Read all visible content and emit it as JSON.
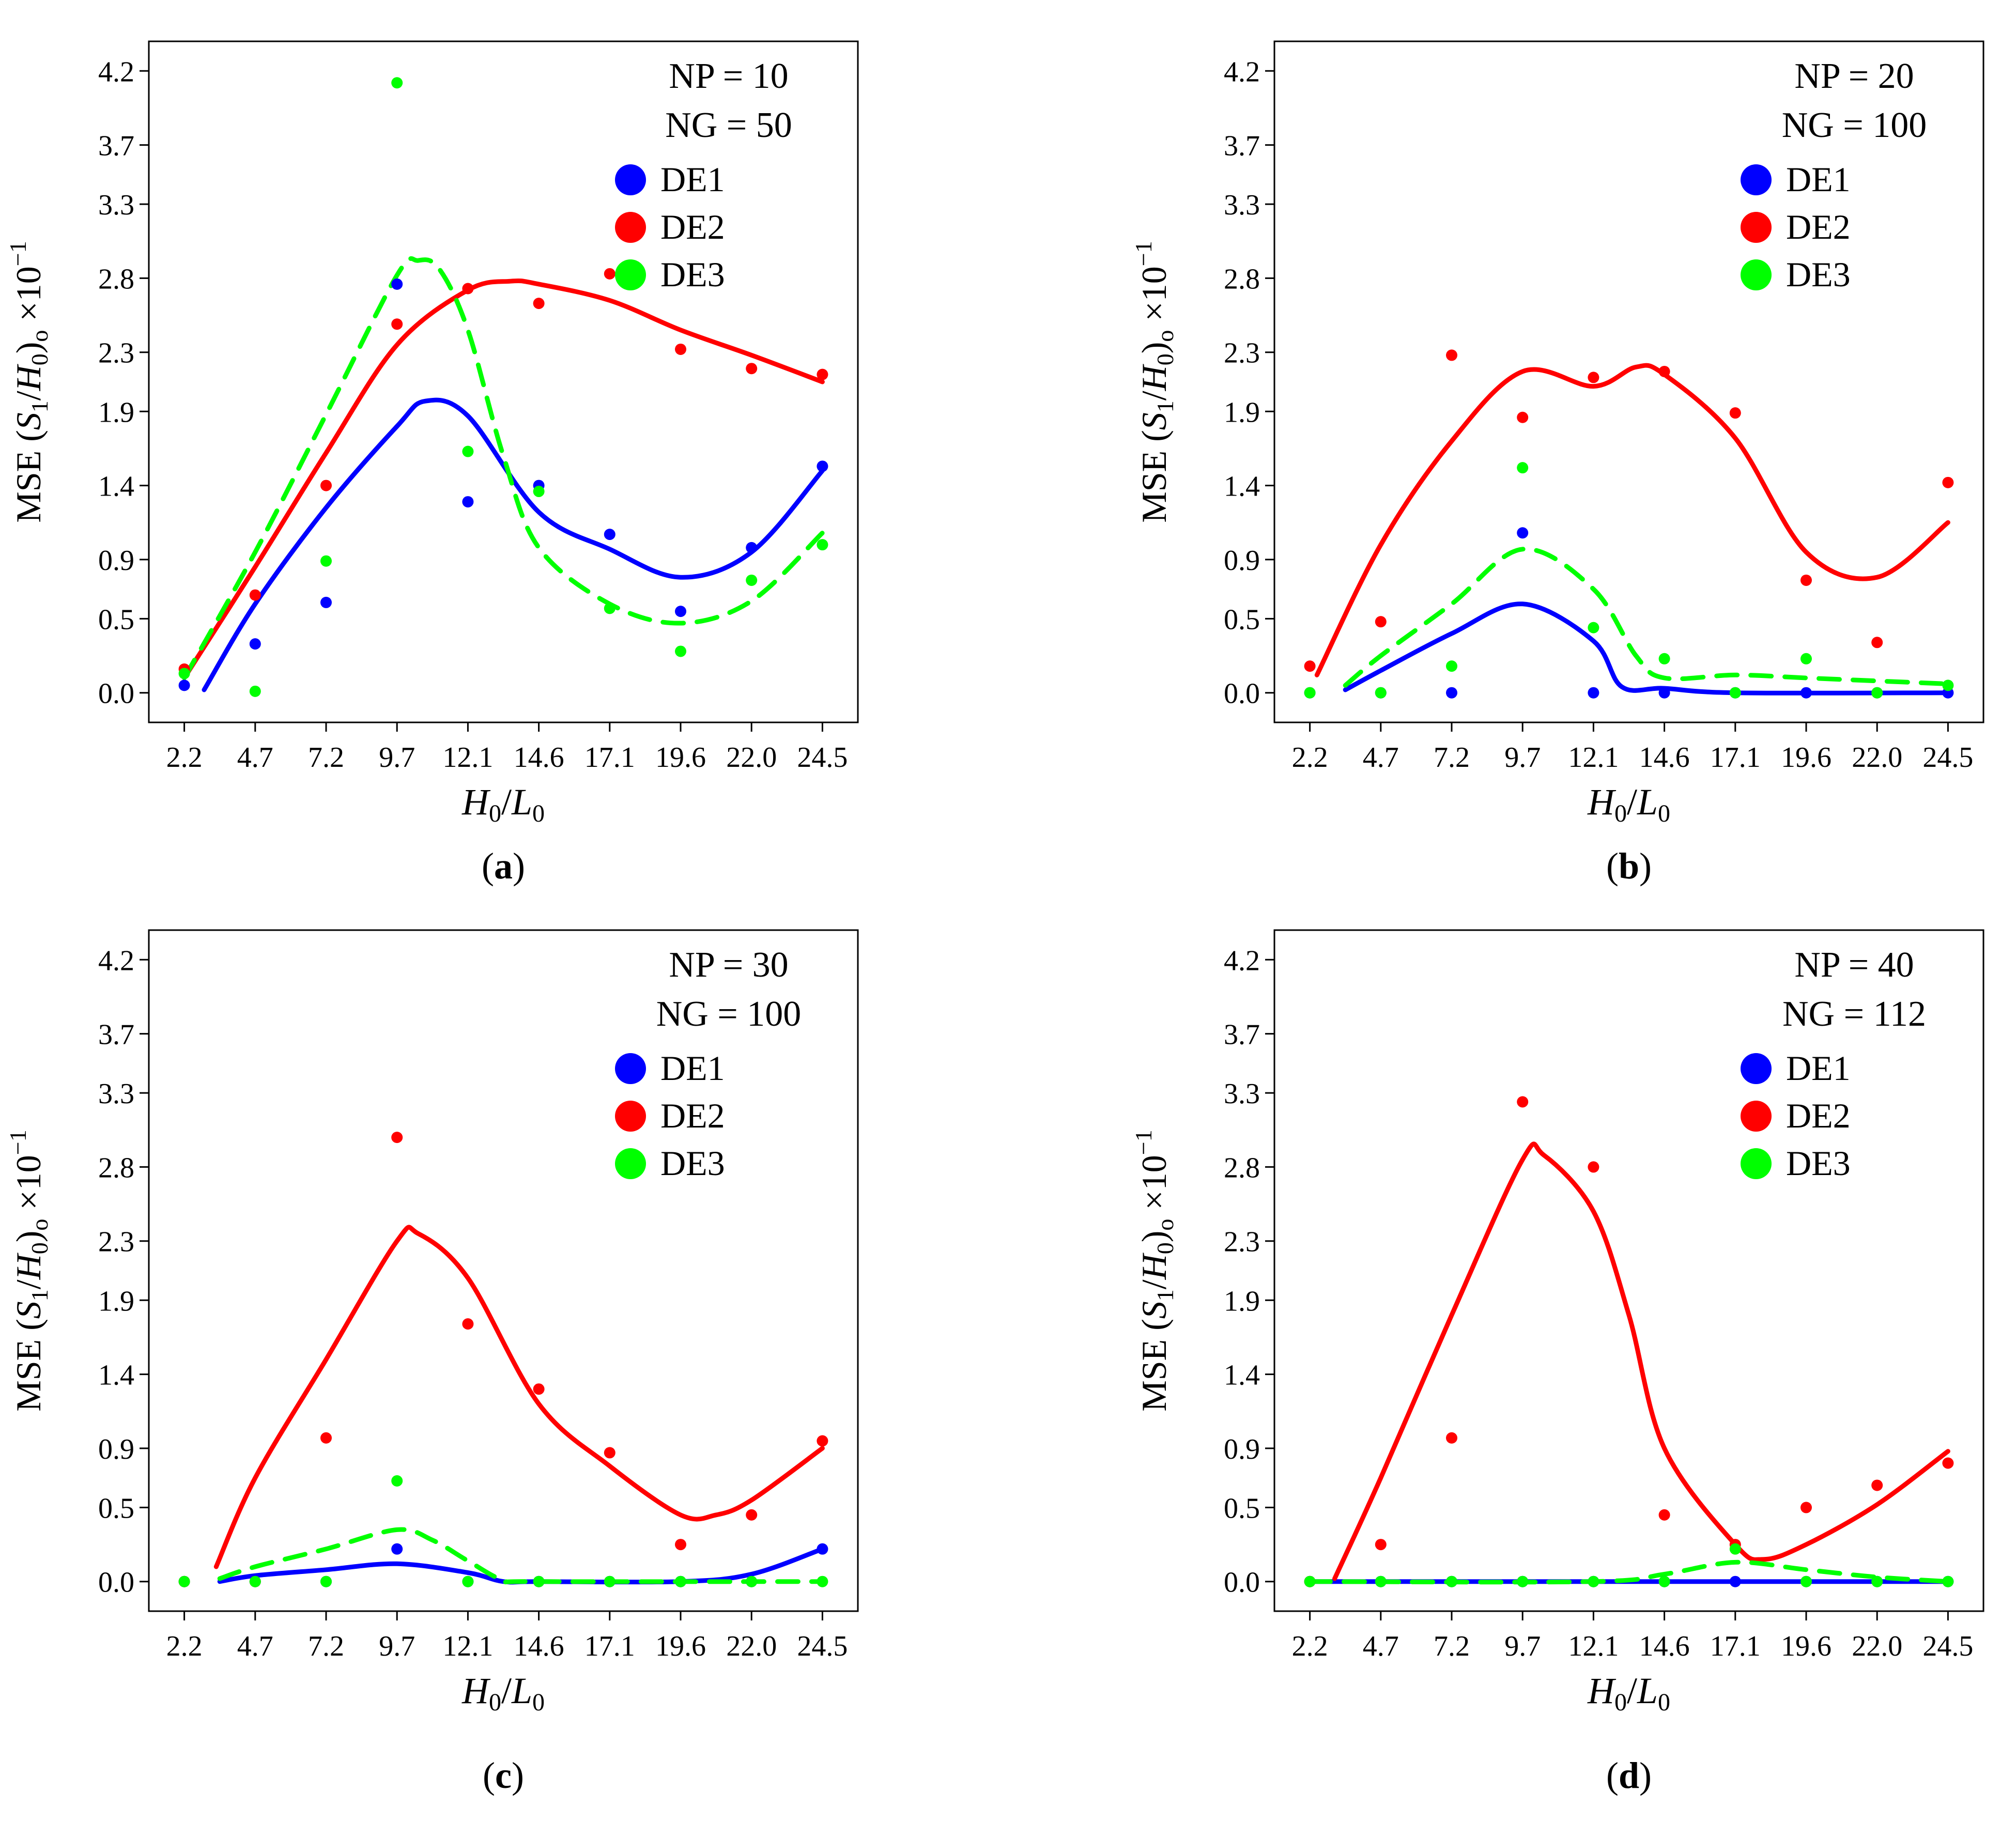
{
  "chart_data": [
    {
      "type": "scatter",
      "caption_letter": "a",
      "annotations": [
        "NP = 10",
        "NG = 50"
      ],
      "xlabel_main": "H",
      "xlabel_sub": "0",
      "xlabel_sep": "/",
      "xlabel_main2": "L",
      "xlabel_sub2": "0",
      "categories": [
        "2.2",
        "4.7",
        "7.2",
        "9.7",
        "12.1",
        "14.6",
        "17.1",
        "19.6",
        "22.0",
        "24.5"
      ],
      "yticks": [
        "0.0",
        "0.5",
        "0.9",
        "1.4",
        "1.9",
        "2.3",
        "2.8",
        "3.3",
        "3.7",
        "4.2"
      ],
      "ylim": [
        -0.2,
        4.4
      ],
      "legend": [
        "DE1",
        "DE2",
        "DE3"
      ],
      "series": [
        {
          "name": "DE1",
          "color": "#0000ff",
          "dash": false,
          "points": [
            0.05,
            0.33,
            0.61,
            2.76,
            1.29,
            1.4,
            1.07,
            0.55,
            0.98,
            1.53
          ],
          "curve": [
            [
              0.28,
              0.02
            ],
            [
              1,
              0.6
            ],
            [
              2,
              1.25
            ],
            [
              3,
              1.8
            ],
            [
              3.4,
              1.97
            ],
            [
              4,
              1.87
            ],
            [
              5,
              1.22
            ],
            [
              6,
              0.97
            ],
            [
              7,
              0.78
            ],
            [
              8,
              0.95
            ],
            [
              9,
              1.5
            ]
          ]
        },
        {
          "name": "DE2",
          "color": "#ff0000",
          "dash": false,
          "points": [
            0.16,
            0.66,
            1.4,
            2.49,
            2.73,
            2.63,
            2.83,
            2.32,
            2.19,
            2.15
          ],
          "curve": [
            [
              0,
              0.1
            ],
            [
              1,
              0.85
            ],
            [
              2,
              1.62
            ],
            [
              3,
              2.35
            ],
            [
              4,
              2.72
            ],
            [
              4.6,
              2.78
            ],
            [
              5,
              2.76
            ],
            [
              6,
              2.65
            ],
            [
              7,
              2.45
            ],
            [
              8,
              2.28
            ],
            [
              9,
              2.1
            ]
          ]
        },
        {
          "name": "DE3",
          "color": "#00ff00",
          "dash": true,
          "points": [
            0.13,
            0.01,
            0.89,
            4.12,
            1.63,
            1.36,
            0.57,
            0.28,
            0.76,
            1.0
          ],
          "curve": [
            [
              0,
              0.1
            ],
            [
              1,
              0.95
            ],
            [
              2,
              1.88
            ],
            [
              3,
              2.82
            ],
            [
              3.3,
              2.92
            ],
            [
              3.6,
              2.86
            ],
            [
              4,
              2.45
            ],
            [
              4.5,
              1.6
            ],
            [
              5,
              0.98
            ],
            [
              6,
              0.6
            ],
            [
              7,
              0.47
            ],
            [
              8,
              0.62
            ],
            [
              9,
              1.08
            ]
          ]
        }
      ]
    },
    {
      "type": "scatter",
      "caption_letter": "b",
      "annotations": [
        "NP = 20",
        "NG = 100"
      ],
      "xlabel_main": "H",
      "xlabel_sub": "0",
      "xlabel_sep": "/",
      "xlabel_main2": "L",
      "xlabel_sub2": "0",
      "categories": [
        "2.2",
        "4.7",
        "7.2",
        "9.7",
        "12.1",
        "14.6",
        "17.1",
        "19.6",
        "22.0",
        "24.5"
      ],
      "yticks": [
        "0.0",
        "0.5",
        "0.9",
        "1.4",
        "1.9",
        "2.3",
        "2.8",
        "3.3",
        "3.7",
        "4.2"
      ],
      "ylim": [
        -0.2,
        4.4
      ],
      "legend": [
        "DE1",
        "DE2",
        "DE3"
      ],
      "series": [
        {
          "name": "DE1",
          "color": "#0000ff",
          "dash": false,
          "points": [
            0.0,
            0.0,
            0.0,
            1.08,
            0.0,
            0.0,
            0.0,
            0.0,
            0.0,
            0.0
          ],
          "curve": [
            [
              0.5,
              0.02
            ],
            [
              1,
              0.15
            ],
            [
              2,
              0.4
            ],
            [
              3,
              0.6
            ],
            [
              4,
              0.35
            ],
            [
              4.4,
              0.04
            ],
            [
              5,
              0.03
            ],
            [
              6,
              0.0
            ],
            [
              9,
              0.0
            ]
          ]
        },
        {
          "name": "DE2",
          "color": "#ff0000",
          "dash": false,
          "points": [
            0.18,
            0.48,
            2.28,
            1.86,
            2.13,
            2.17,
            1.89,
            0.76,
            0.34,
            1.42
          ],
          "curve": [
            [
              0.1,
              0.12
            ],
            [
              1,
              1.0
            ],
            [
              2,
              1.7
            ],
            [
              3,
              2.17
            ],
            [
              4,
              2.07
            ],
            [
              4.6,
              2.2
            ],
            [
              5,
              2.15
            ],
            [
              6,
              1.72
            ],
            [
              7,
              0.95
            ],
            [
              8,
              0.78
            ],
            [
              9,
              1.15
            ]
          ]
        },
        {
          "name": "DE3",
          "color": "#00ff00",
          "dash": true,
          "points": [
            0.0,
            0.0,
            0.18,
            1.52,
            0.44,
            0.23,
            0.0,
            0.23,
            0.0,
            0.05
          ],
          "curve": [
            [
              0.5,
              0.05
            ],
            [
              1,
              0.25
            ],
            [
              2,
              0.6
            ],
            [
              3,
              0.97
            ],
            [
              4,
              0.7
            ],
            [
              4.6,
              0.25
            ],
            [
              5,
              0.1
            ],
            [
              6,
              0.12
            ],
            [
              7,
              0.1
            ],
            [
              8,
              0.08
            ],
            [
              9,
              0.06
            ]
          ]
        }
      ]
    },
    {
      "type": "scatter",
      "caption_letter": "c",
      "annotations": [
        "NP = 30",
        "NG = 100"
      ],
      "xlabel_main": "H",
      "xlabel_sub": "0",
      "xlabel_sep": "/",
      "xlabel_main2": "L",
      "xlabel_sub2": "0",
      "categories": [
        "2.2",
        "4.7",
        "7.2",
        "9.7",
        "12.1",
        "14.6",
        "17.1",
        "19.6",
        "22.0",
        "24.5"
      ],
      "yticks": [
        "0.0",
        "0.5",
        "0.9",
        "1.4",
        "1.9",
        "2.3",
        "2.8",
        "3.3",
        "3.7",
        "4.2"
      ],
      "ylim": [
        -0.2,
        4.4
      ],
      "legend": [
        "DE1",
        "DE2",
        "DE3"
      ],
      "series": [
        {
          "name": "DE1",
          "color": "#0000ff",
          "dash": false,
          "points": [
            0.0,
            0.0,
            0.0,
            0.22,
            0.0,
            0.0,
            0.0,
            0.0,
            0.0,
            0.22
          ],
          "curve": [
            [
              0.5,
              0.0
            ],
            [
              1,
              0.04
            ],
            [
              2,
              0.08
            ],
            [
              3,
              0.12
            ],
            [
              4,
              0.06
            ],
            [
              4.5,
              0.0
            ],
            [
              5,
              0.0
            ],
            [
              7,
              0.0
            ],
            [
              8,
              0.05
            ],
            [
              9,
              0.22
            ]
          ]
        },
        {
          "name": "DE2",
          "color": "#ff0000",
          "dash": false,
          "points": [
            0.0,
            0.0,
            0.97,
            3.0,
            1.74,
            1.3,
            0.87,
            0.25,
            0.45,
            0.95
          ],
          "curve": [
            [
              0.45,
              0.1
            ],
            [
              1,
              0.7
            ],
            [
              2,
              1.5
            ],
            [
              3,
              2.3
            ],
            [
              3.3,
              2.35
            ],
            [
              4,
              2.05
            ],
            [
              5,
              1.2
            ],
            [
              6,
              0.78
            ],
            [
              7,
              0.45
            ],
            [
              7.5,
              0.45
            ],
            [
              8,
              0.55
            ],
            [
              9,
              0.9
            ]
          ]
        },
        {
          "name": "DE3",
          "color": "#00ff00",
          "dash": true,
          "points": [
            0.0,
            0.0,
            0.0,
            0.68,
            0.0,
            0.0,
            0.0,
            0.0,
            0.0,
            0.0
          ],
          "curve": [
            [
              0.5,
              0.02
            ],
            [
              1,
              0.1
            ],
            [
              2,
              0.22
            ],
            [
              3,
              0.35
            ],
            [
              3.5,
              0.28
            ],
            [
              4,
              0.14
            ],
            [
              4.5,
              0.01
            ],
            [
              5,
              0.0
            ],
            [
              9,
              0.0
            ]
          ]
        }
      ]
    },
    {
      "type": "scatter",
      "caption_letter": "d",
      "annotations": [
        "NP = 40",
        "NG = 112"
      ],
      "xlabel_main": "H",
      "xlabel_sub": "0",
      "xlabel_sep": "/",
      "xlabel_main2": "L",
      "xlabel_sub2": "0",
      "categories": [
        "2.2",
        "4.7",
        "7.2",
        "9.7",
        "12.1",
        "14.6",
        "17.1",
        "19.6",
        "22.0",
        "24.5"
      ],
      "yticks": [
        "0.0",
        "0.5",
        "0.9",
        "1.4",
        "1.9",
        "2.3",
        "2.8",
        "3.3",
        "3.7",
        "4.2"
      ],
      "ylim": [
        -0.2,
        4.4
      ],
      "legend": [
        "DE1",
        "DE2",
        "DE3"
      ],
      "series": [
        {
          "name": "DE1",
          "color": "#0000ff",
          "dash": false,
          "points": [
            0.0,
            0.0,
            0.0,
            0.0,
            0.0,
            0.0,
            0.0,
            0.0,
            0.0,
            0.0
          ],
          "curve": [
            [
              0,
              0.0
            ],
            [
              9,
              0.0
            ]
          ]
        },
        {
          "name": "DE2",
          "color": "#ff0000",
          "dash": false,
          "points": [
            0.0,
            0.25,
            0.97,
            3.24,
            2.8,
            0.45,
            0.25,
            0.5,
            0.65,
            0.8
          ],
          "curve": [
            [
              0.35,
              0.02
            ],
            [
              1,
              0.7
            ],
            [
              2,
              1.8
            ],
            [
              3,
              2.85
            ],
            [
              3.3,
              2.88
            ],
            [
              4,
              2.5
            ],
            [
              4.5,
              1.8
            ],
            [
              5,
              0.9
            ],
            [
              6,
              0.25
            ],
            [
              6.4,
              0.15
            ],
            [
              7,
              0.25
            ],
            [
              8,
              0.52
            ],
            [
              9,
              0.88
            ]
          ]
        },
        {
          "name": "DE3",
          "color": "#00ff00",
          "dash": true,
          "points": [
            0.0,
            0.0,
            0.0,
            0.0,
            0.0,
            0.0,
            0.22,
            0.0,
            0.0,
            0.0
          ],
          "curve": [
            [
              0,
              0.0
            ],
            [
              4,
              0.0
            ],
            [
              5,
              0.05
            ],
            [
              6,
              0.13
            ],
            [
              7,
              0.08
            ],
            [
              8,
              0.03
            ],
            [
              9,
              0.0
            ]
          ]
        }
      ]
    }
  ]
}
